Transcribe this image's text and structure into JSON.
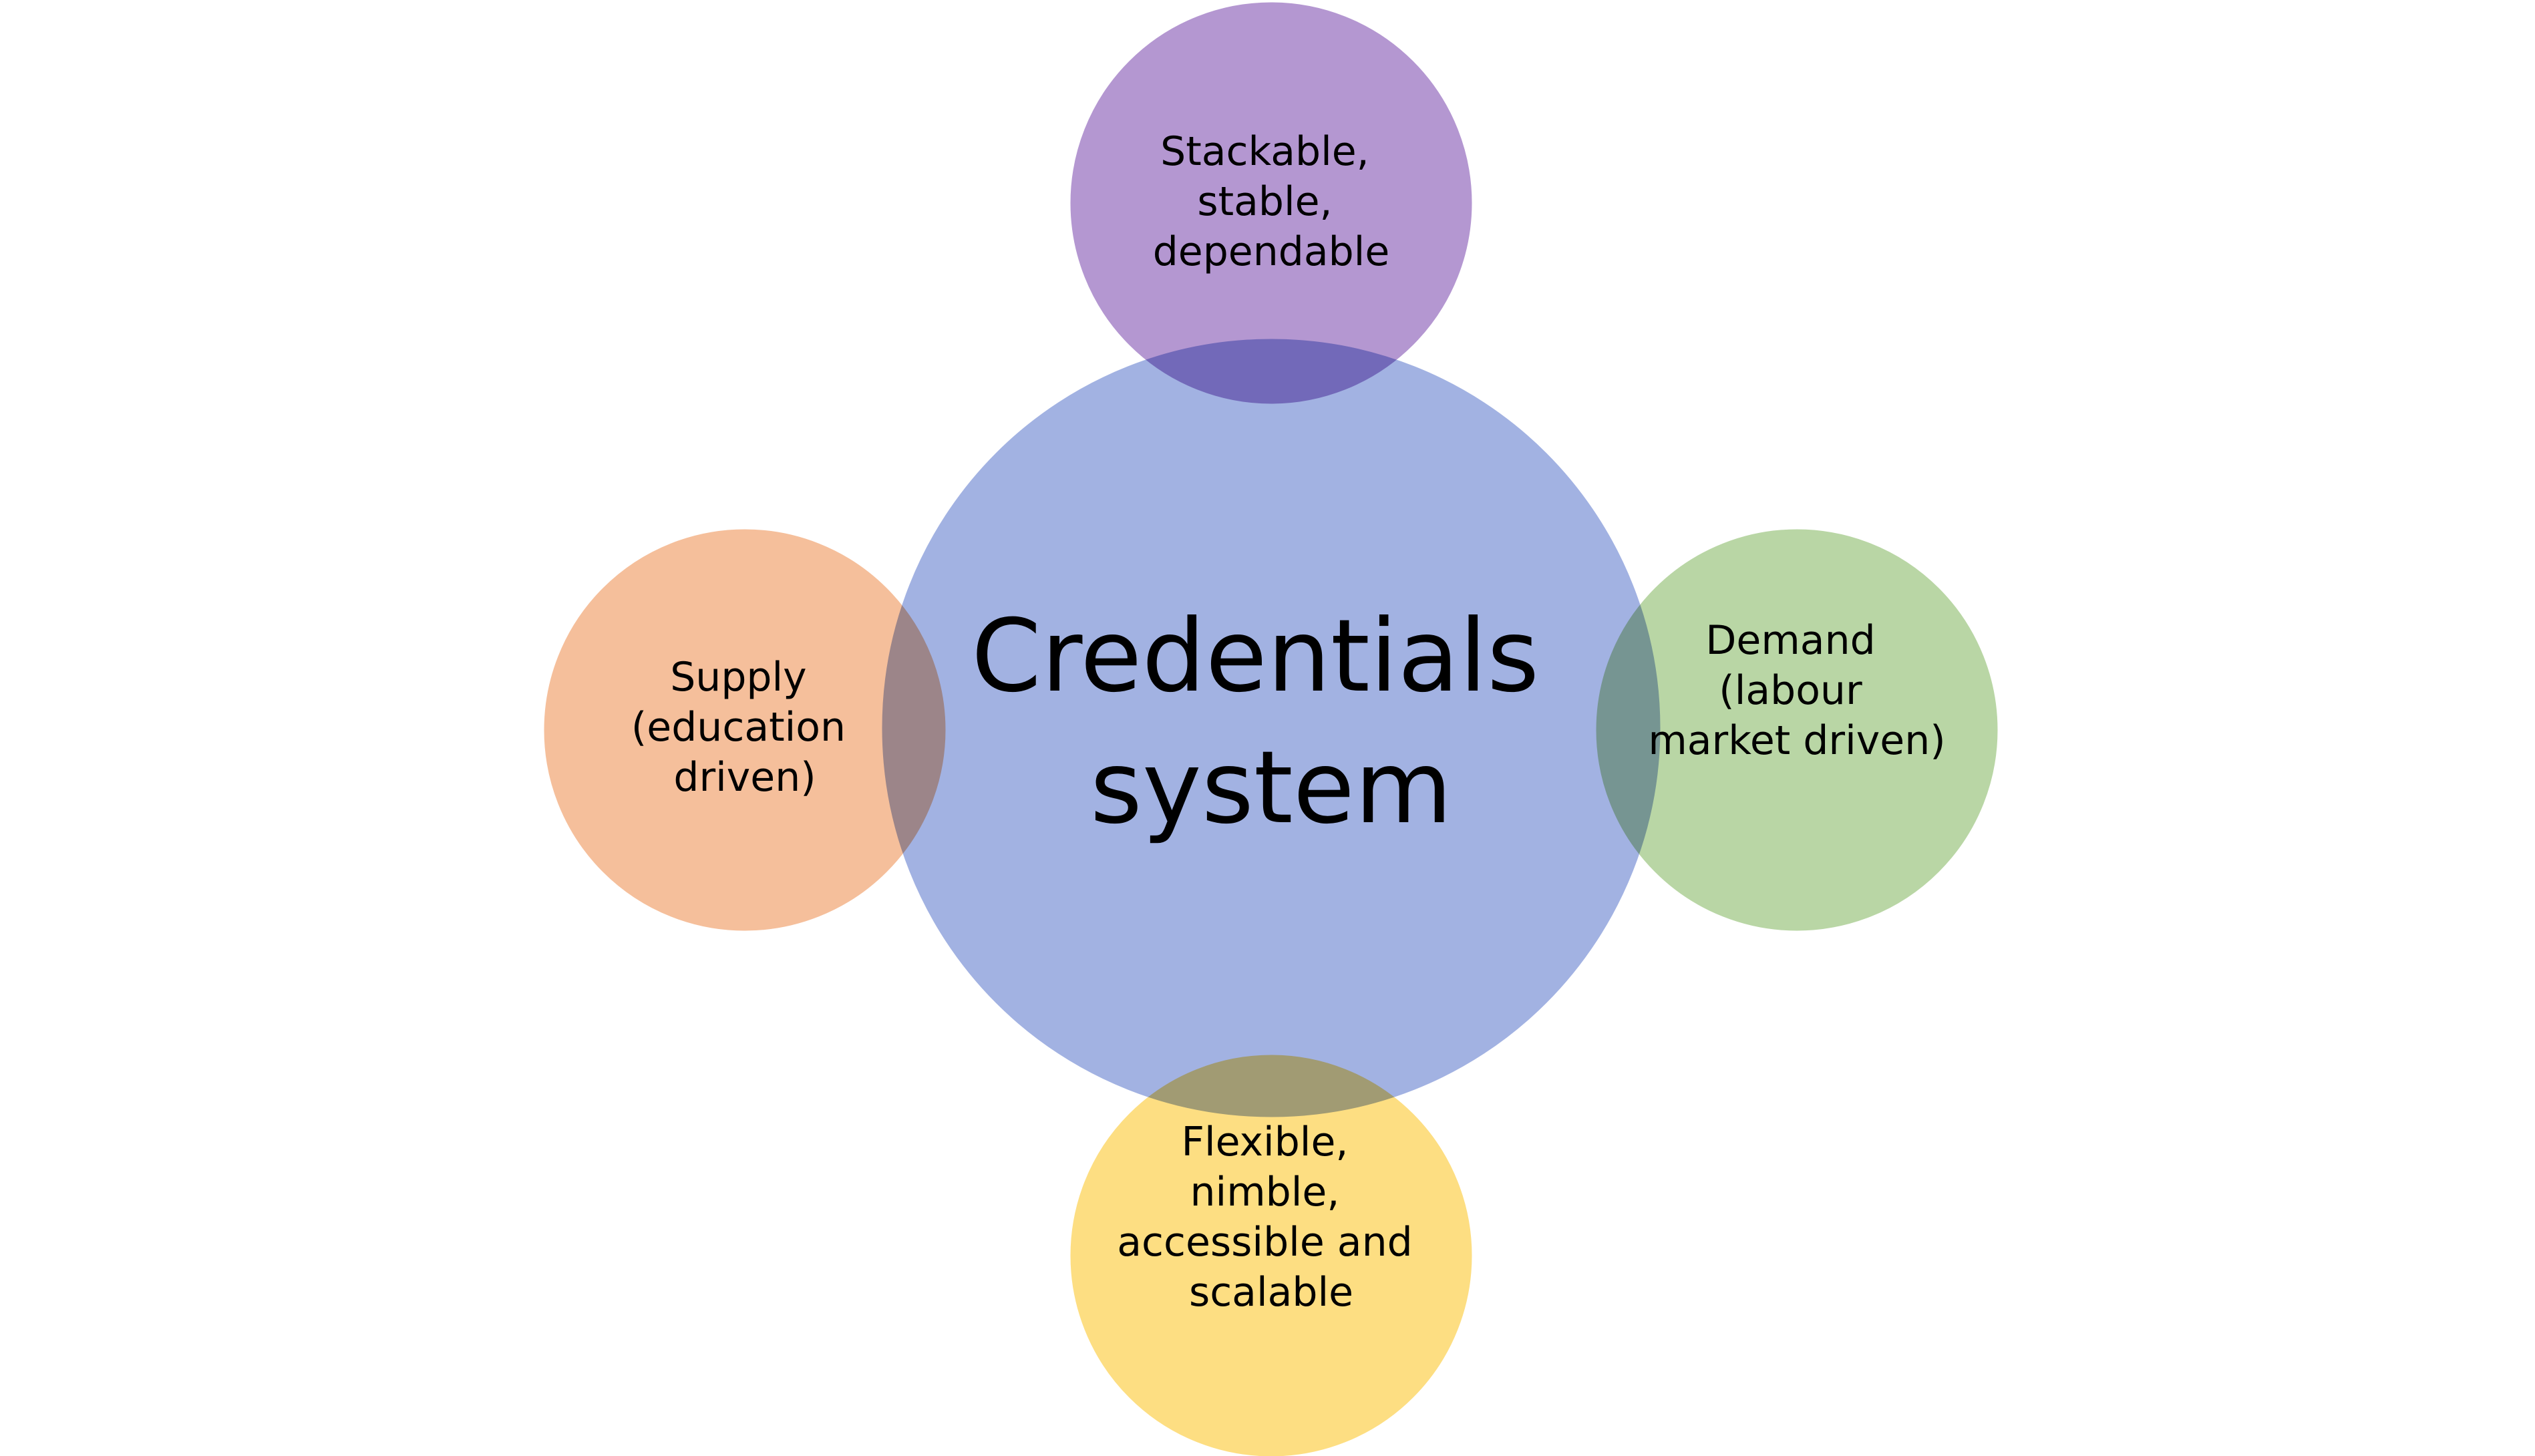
{
  "diagram": {
    "center": {
      "lines": [
        "Credentials",
        "system"
      ],
      "color": "#a2b2e2"
    },
    "top": {
      "lines": [
        "Stackable,",
        "stable,",
        "dependable"
      ],
      "color": "#b497d1"
    },
    "left": {
      "lines": [
        "Supply",
        "(education",
        "driven)"
      ],
      "color": "#f5bf9b"
    },
    "right": {
      "lines": [
        "Demand",
        "(labour",
        "market driven)"
      ],
      "color": "#b9d6a5"
    },
    "bottom": {
      "lines": [
        "Flexible,",
        "nimble,",
        "accessible and",
        "scalable"
      ],
      "color": "#fdde82"
    }
  }
}
